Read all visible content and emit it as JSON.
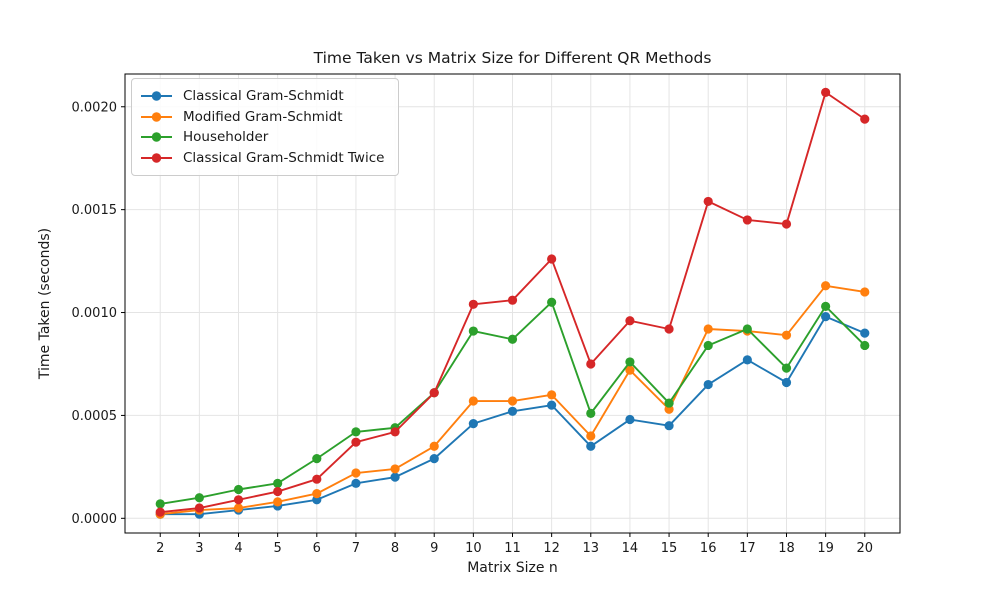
{
  "chart_data": {
    "type": "line",
    "title": "Time Taken vs Matrix Size for Different QR Methods",
    "xlabel": "Matrix Size n",
    "ylabel": "Time Taken (seconds)",
    "x": [
      2,
      3,
      4,
      5,
      6,
      7,
      8,
      9,
      10,
      11,
      12,
      13,
      14,
      15,
      16,
      17,
      18,
      19,
      20
    ],
    "series": [
      {
        "name": "Classical Gram-Schmidt",
        "color": "#1f77b4",
        "values": [
          2e-05,
          2e-05,
          4e-05,
          6e-05,
          9e-05,
          0.00017,
          0.0002,
          0.00029,
          0.00046,
          0.00052,
          0.00055,
          0.00035,
          0.00048,
          0.00045,
          0.00065,
          0.00077,
          0.00066,
          0.00098,
          0.0009
        ]
      },
      {
        "name": "Modified Gram-Schmidt",
        "color": "#ff7f0e",
        "values": [
          2e-05,
          4e-05,
          5e-05,
          8e-05,
          0.00012,
          0.00022,
          0.00024,
          0.00035,
          0.00057,
          0.00057,
          0.0006,
          0.0004,
          0.00072,
          0.00053,
          0.00092,
          0.00091,
          0.00089,
          0.00113,
          0.0011
        ]
      },
      {
        "name": "Householder",
        "color": "#2ca02c",
        "values": [
          7e-05,
          0.0001,
          0.00014,
          0.00017,
          0.00029,
          0.00042,
          0.00044,
          0.00061,
          0.00091,
          0.00087,
          0.00105,
          0.00051,
          0.00076,
          0.00056,
          0.00084,
          0.00092,
          0.00073,
          0.00103,
          0.00084
        ]
      },
      {
        "name": "Classical Gram-Schmidt Twice",
        "color": "#d62728",
        "values": [
          3e-05,
          5e-05,
          9e-05,
          0.00013,
          0.00019,
          0.00037,
          0.00042,
          0.00061,
          0.00104,
          0.00106,
          0.00126,
          0.00075,
          0.00096,
          0.00092,
          0.00154,
          0.00145,
          0.00143,
          0.00207,
          0.00194
        ]
      }
    ],
    "y_ticks": [
      0.0,
      0.0005,
      0.001,
      0.0015,
      0.002
    ],
    "y_tick_labels": [
      "0.0000",
      "0.0005",
      "0.0010",
      "0.0015",
      "0.0020"
    ],
    "xlim": [
      1.1,
      20.9
    ],
    "ylim": [
      -7.14e-05,
      0.0021592
    ],
    "grid": true,
    "legend_position": "upper left"
  }
}
